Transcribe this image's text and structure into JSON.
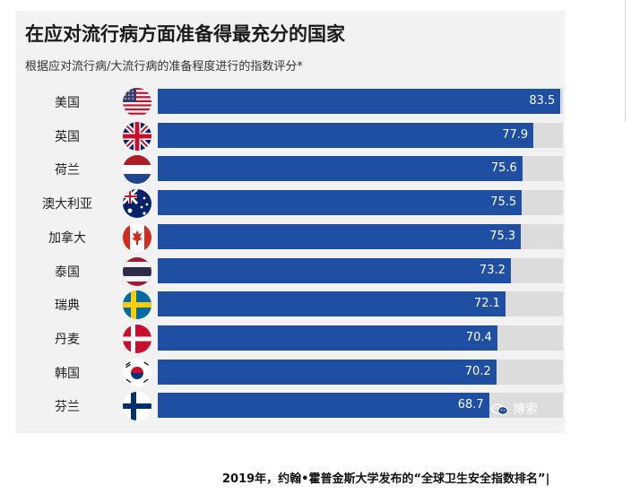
{
  "chart_data": {
    "type": "bar",
    "orientation": "horizontal",
    "title": "在应对流行病方面准备得最充分的国家",
    "subtitle": "根据应对流行病/大流行病的准备程度进行的指数评分*",
    "categories": [
      "美国",
      "英国",
      "荷兰",
      "澳大利亚",
      "加拿大",
      "泰国",
      "瑞典",
      "丹麦",
      "韩国",
      "芬兰"
    ],
    "values": [
      83.5,
      77.9,
      75.6,
      75.5,
      75.3,
      73.2,
      72.1,
      70.4,
      70.2,
      68.7
    ],
    "value_labels": [
      "83.5",
      "77.9",
      "75.6",
      "75.5",
      "75.3",
      "73.2",
      "72.1",
      "70.4",
      "70.2",
      "68.7"
    ],
    "xlim": [
      0,
      84
    ],
    "bar_color": "#1f4fa3",
    "track_color": "#dcdcdc",
    "flag_icons": [
      "us-flag-icon",
      "uk-flag-icon",
      "netherlands-flag-icon",
      "australia-flag-icon",
      "canada-flag-icon",
      "thailand-flag-icon",
      "sweden-flag-icon",
      "denmark-flag-icon",
      "korea-flag-icon",
      "finland-flag-icon"
    ]
  },
  "watermark": {
    "text": "博索",
    "icon": "wechat-icon"
  },
  "caption": "2019年，约翰•霍普金斯大学发布的“全球卫生安全指数排名”|"
}
